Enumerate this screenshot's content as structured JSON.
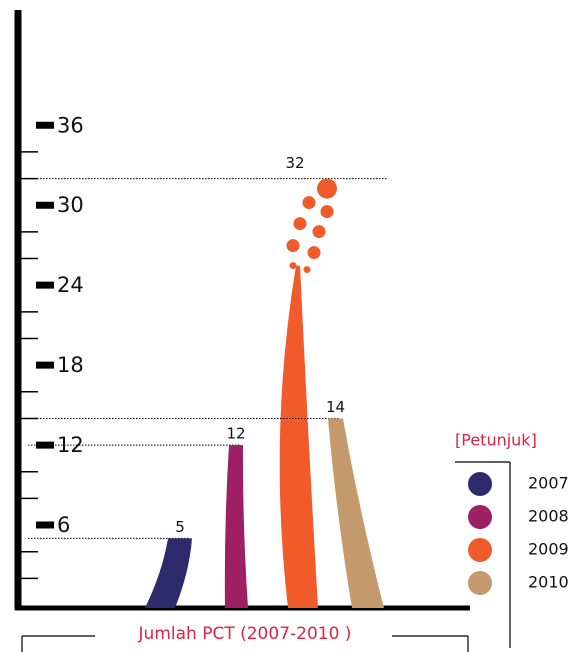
{
  "chart_data": {
    "type": "bar",
    "title": "Jumlah PCT (2007-2010 )",
    "legend_title": "[Petunjuk]",
    "series": [
      {
        "name": "2007",
        "color": "#2e2a6b",
        "values": [
          5
        ]
      },
      {
        "name": "2008",
        "color": "#9e1f63",
        "values": [
          12
        ]
      },
      {
        "name": "2009",
        "color": "#f15a29",
        "values": [
          32
        ]
      },
      {
        "name": "2010",
        "color": "#c49a6c",
        "values": [
          14
        ]
      }
    ],
    "ylim": [
      0,
      44.5
    ],
    "yticks": [
      6,
      12,
      18,
      24,
      30,
      36
    ],
    "minor_yticks": [
      2,
      4,
      8,
      10,
      14,
      16,
      20,
      22,
      26,
      28,
      32,
      34
    ],
    "legend": "right"
  }
}
